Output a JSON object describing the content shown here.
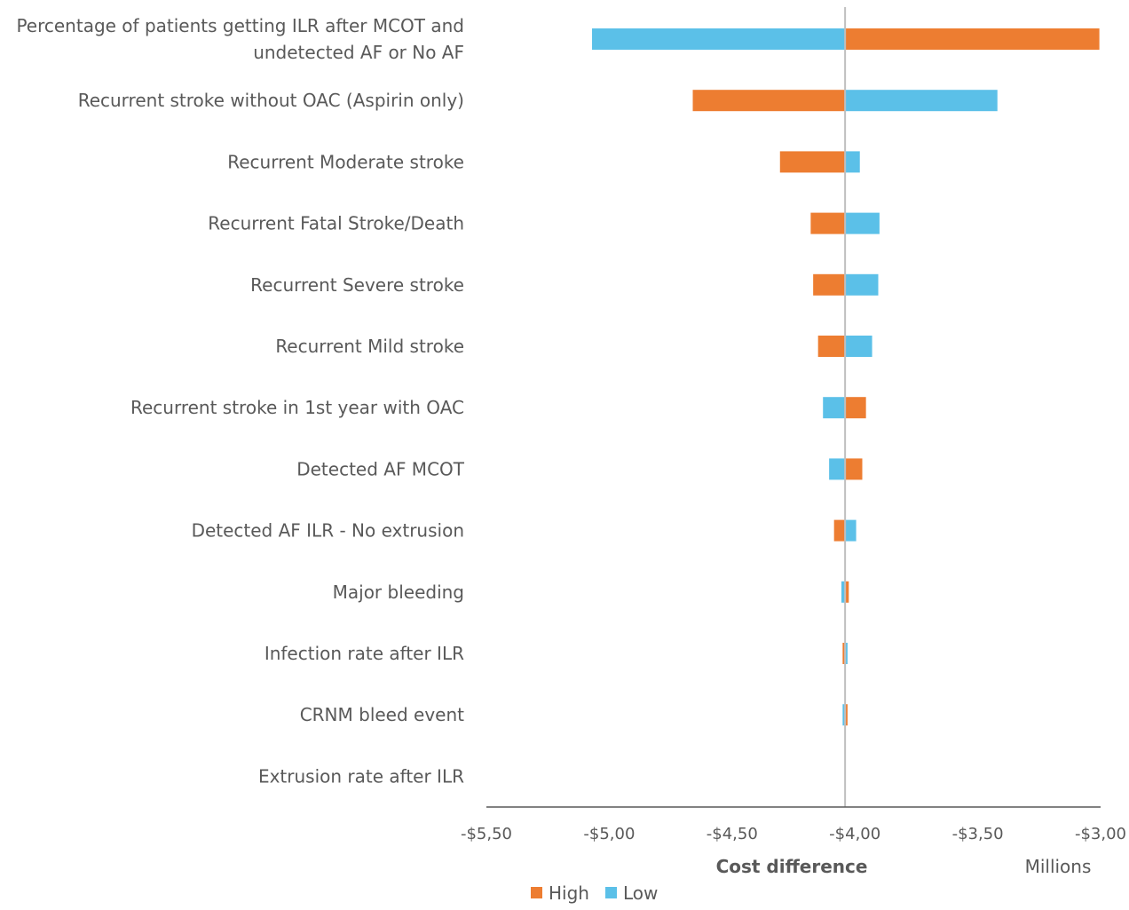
{
  "chart_data": {
    "type": "bar",
    "orientation": "horizontal",
    "subtype": "tornado",
    "xlabel": "Cost difference",
    "x_unit_label": "Millions",
    "xlim": [
      -5.5,
      -3.0
    ],
    "xticks": [
      "-$5,50",
      "-$5,00",
      "-$4,50",
      "-$4,00",
      "-$3,50",
      "-$3,00"
    ],
    "xtick_values": [
      -5.5,
      -5.0,
      -4.5,
      -4.0,
      -3.5,
      -3.0
    ],
    "base_value": -4.04,
    "categories": [
      [
        "Percentage of patients getting ILR after MCOT and",
        "undetected AF or No AF"
      ],
      [
        "Recurrent stroke without OAC (Aspirin only)"
      ],
      [
        "Recurrent Moderate stroke"
      ],
      [
        "Recurrent Fatal Stroke/Death"
      ],
      [
        "Recurrent Severe stroke"
      ],
      [
        "Recurrent Mild stroke"
      ],
      [
        "Recurrent stroke in 1st year with OAC"
      ],
      [
        "Detected AF MCOT"
      ],
      [
        "Detected AF ILR - No extrusion"
      ],
      [
        "Major bleeding"
      ],
      [
        "Infection rate after ILR"
      ],
      [
        "CRNM bleed event"
      ],
      [
        "Extrusion rate after ILR"
      ]
    ],
    "series": [
      {
        "name": "High",
        "color": "#ED7D31",
        "values": [
          -3.005,
          -4.66,
          -4.305,
          -4.18,
          -4.17,
          -4.15,
          -3.955,
          -3.97,
          -4.085,
          -4.025,
          -4.05,
          -4.03,
          -4.04
        ]
      },
      {
        "name": "Low",
        "color": "#5BC0E8",
        "values": [
          -5.07,
          -3.42,
          -3.98,
          -3.9,
          -3.905,
          -3.93,
          -4.13,
          -4.105,
          -3.995,
          -4.055,
          -4.03,
          -4.05,
          -4.04
        ]
      }
    ],
    "legend_position": "bottom",
    "grid": false
  }
}
